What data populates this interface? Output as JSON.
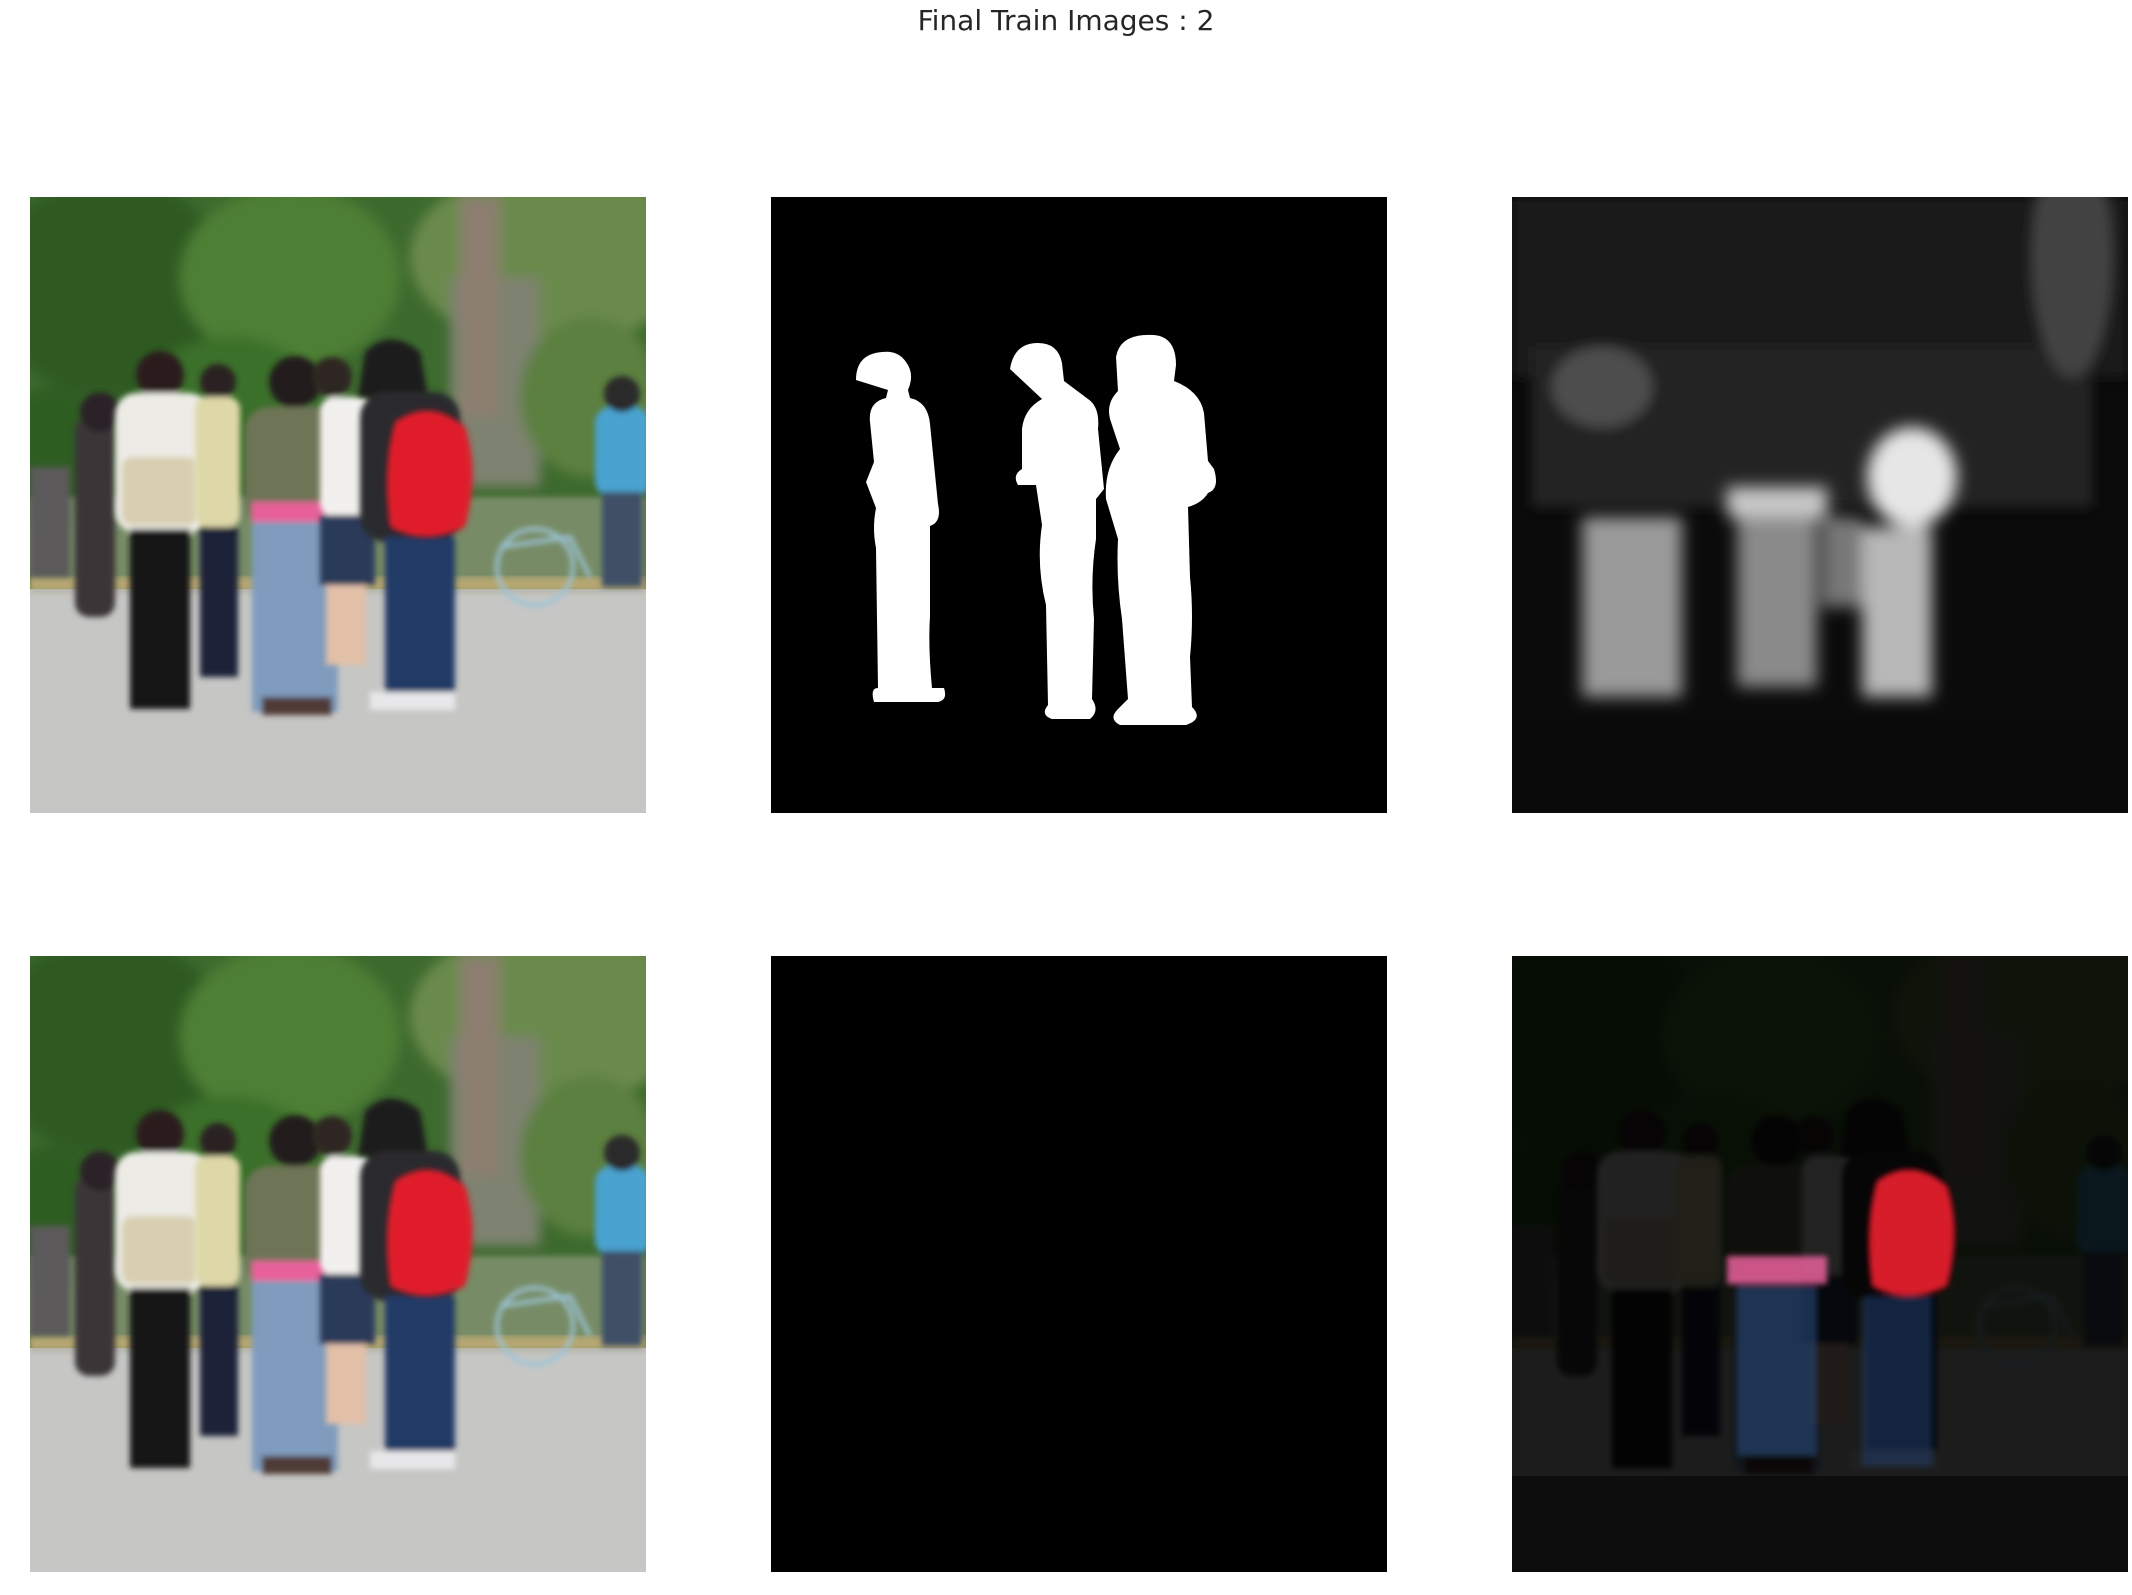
{
  "figure": {
    "title": "Final Train Images : 2"
  },
  "panels": [
    {
      "row": 0,
      "col": 0,
      "kind": "original-image"
    },
    {
      "row": 0,
      "col": 1,
      "kind": "ground-truth-mask"
    },
    {
      "row": 0,
      "col": 2,
      "kind": "predicted-mask"
    },
    {
      "row": 1,
      "col": 0,
      "kind": "original-image"
    },
    {
      "row": 1,
      "col": 1,
      "kind": "ground-truth-masked-image"
    },
    {
      "row": 1,
      "col": 2,
      "kind": "predicted-masked-image"
    }
  ],
  "colors": {
    "background": "#ffffff",
    "title_text": "#262626",
    "mask_fg": "#ffffff",
    "mask_bg": "#000000",
    "backpack_red": "#e01b2a",
    "waist_pink": "#e8609a",
    "foliage_green": "#3f6e2c",
    "road_gray": "#c8c8c8"
  }
}
